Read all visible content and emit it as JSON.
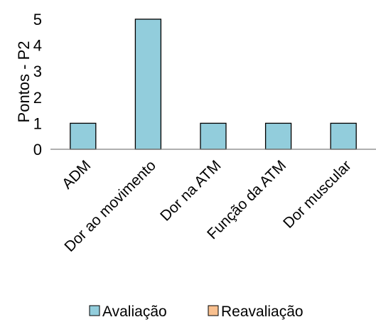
{
  "chart_data": {
    "type": "bar",
    "categories": [
      "ADM",
      "Dor ao movimento",
      "Dor na ATM",
      "Função da ATM",
      "Dor muscular"
    ],
    "series": [
      {
        "name": "Avaliação",
        "values": [
          1,
          5,
          1,
          1,
          1
        ],
        "color": "#92CDDC"
      },
      {
        "name": "Reavaliação",
        "values": [
          0,
          0,
          0,
          0,
          0
        ],
        "color": "#F9C08F"
      }
    ],
    "ylabel": "Pontos  - P2",
    "ylim": [
      0,
      5
    ],
    "yticks": [
      "0",
      "1",
      "2",
      "3",
      "4",
      "5"
    ],
    "grid": false,
    "legend_position": "bottom",
    "bar_border_color": "#000000",
    "axis_color": "#7F7F7F"
  }
}
